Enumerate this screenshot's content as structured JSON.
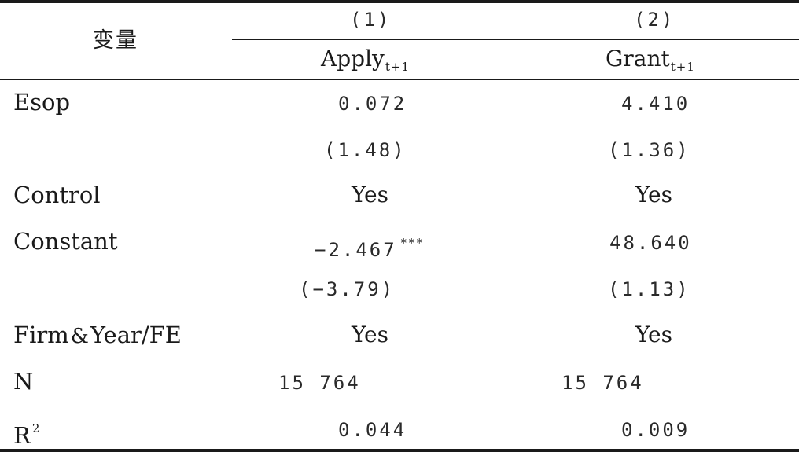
{
  "header": {
    "var_label": "变量",
    "col1_num": "(1)",
    "col2_num": "(2)",
    "col1_dep": "Apply",
    "col1_dep_sub": "t+1",
    "col2_dep": "Grant",
    "col2_dep_sub": "t+1"
  },
  "rows": [
    {
      "label": "Esop",
      "col1": "0.072",
      "col2": "4.410"
    },
    {
      "label": "",
      "col1": "(1.48)",
      "col2": "(1.36)"
    },
    {
      "label": "Control",
      "col1": "Yes",
      "col2": "Yes"
    },
    {
      "label": "Constant",
      "col1": "−2.467",
      "col1_stars": "***",
      "col2": "48.640"
    },
    {
      "label": "",
      "col1": "(−3.79)",
      "col2": "(1.13)"
    },
    {
      "label_part1": "Firm",
      "label_amp": "&",
      "label_part2": "Year/FE",
      "col1": "Yes",
      "col2": "Yes"
    },
    {
      "label": "N",
      "col1": "15 764",
      "col2": "15 764"
    },
    {
      "label": "R",
      "label_sup": "2",
      "col1": "0.044",
      "col2": "0.009"
    }
  ]
}
